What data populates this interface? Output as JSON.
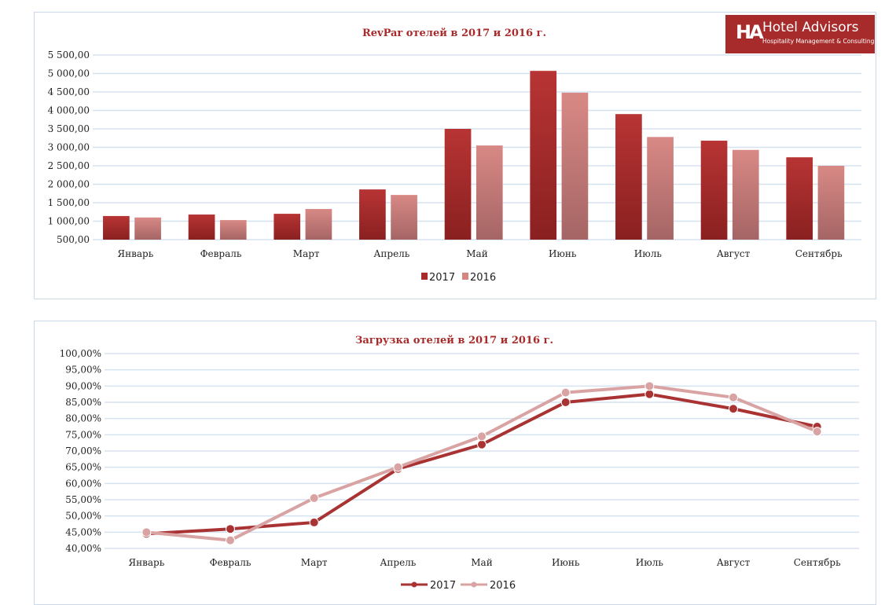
{
  "logo": {
    "name": "Hotel Advisors",
    "subtitle": "Hospitality Management & Consulting",
    "mark": "HA"
  },
  "chart_data": [
    {
      "type": "bar",
      "title": "RevPar отелей в 2017 и 2016 г.",
      "categories": [
        "Январь",
        "Февраль",
        "Март",
        "Апрель",
        "Май",
        "Июнь",
        "Июль",
        "Август",
        "Сентябрь"
      ],
      "series": [
        {
          "name": "2017",
          "color": "#a82a2a",
          "values": [
            1140,
            1180,
            1200,
            1860,
            3500,
            5070,
            3900,
            3180,
            2730
          ]
        },
        {
          "name": "2016",
          "color": "#d48683",
          "values": [
            1100,
            1030,
            1330,
            1710,
            3050,
            4480,
            3280,
            2930,
            2500
          ]
        }
      ],
      "ylim": [
        500,
        5500
      ],
      "yticks": [
        "500,00",
        "1 000,00",
        "1 500,00",
        "2 000,00",
        "2 500,00",
        "3 000,00",
        "3 500,00",
        "4 000,00",
        "4 500,00",
        "5 000,00",
        "5 500,00"
      ],
      "legend": "bottom",
      "grid": true
    },
    {
      "type": "line",
      "title": "Загрузка отелей в 2017 и 2016 г.",
      "categories": [
        "Январь",
        "Февраль",
        "Март",
        "Апрель",
        "Май",
        "Июнь",
        "Июль",
        "Август",
        "Сентябрь"
      ],
      "series": [
        {
          "name": "2017",
          "color": "#a93333",
          "values": [
            44.5,
            46,
            48,
            64.5,
            72,
            85,
            87.5,
            83,
            77.5
          ]
        },
        {
          "name": "2016",
          "color": "#d9a3a3",
          "values": [
            45,
            42.5,
            55.5,
            65,
            74.5,
            88,
            90,
            86.5,
            76
          ]
        }
      ],
      "ylim": [
        40,
        100
      ],
      "yticks": [
        "40,00%",
        "45,00%",
        "50,00%",
        "55,00%",
        "60,00%",
        "65,00%",
        "70,00%",
        "75,00%",
        "80,00%",
        "85,00%",
        "90,00%",
        "95,00%",
        "100,00%"
      ],
      "legend": "bottom",
      "grid": true
    }
  ]
}
